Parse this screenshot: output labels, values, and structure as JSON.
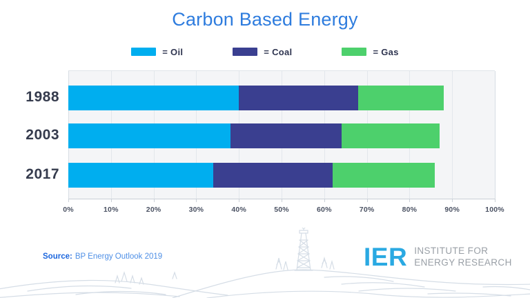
{
  "title": "Carbon Based Energy",
  "legend": [
    {
      "label": "= Oil",
      "color": "#00AEEF"
    },
    {
      "label": "= Coal",
      "color": "#3A3F90"
    },
    {
      "label": "= Gas",
      "color": "#4DD06C"
    }
  ],
  "chart_data": {
    "type": "bar",
    "orientation": "horizontal",
    "stacked": true,
    "title": "Carbon Based Energy",
    "categories": [
      "1988",
      "2003",
      "2017"
    ],
    "series": [
      {
        "name": "Oil",
        "color": "#00AEEF",
        "values": [
          40,
          38,
          34
        ]
      },
      {
        "name": "Coal",
        "color": "#3A3F90",
        "values": [
          28,
          26,
          28
        ]
      },
      {
        "name": "Gas",
        "color": "#4DD06C",
        "values": [
          20,
          23,
          24
        ]
      }
    ],
    "xlabel": "",
    "ylabel": "",
    "units": "%",
    "xlim": [
      0,
      100
    ],
    "x_ticks": [
      "0%",
      "10%",
      "20%",
      "30%",
      "40%",
      "50%",
      "60%",
      "70%",
      "80%",
      "90%",
      "100%"
    ],
    "grid": true,
    "legend_position": "top"
  },
  "source": {
    "label": "Source:",
    "text": "BP Energy Outlook 2019"
  },
  "logo": {
    "acronym": "IER",
    "name_line1": "INSTITUTE FOR",
    "name_line2": "ENERGY RESEARCH"
  },
  "colors": {
    "title": "#2E7CDE",
    "oil": "#00AEEF",
    "coal": "#3A3F90",
    "gas": "#4DD06C",
    "plot_background": "#F4F5F7",
    "gridline": "#E3E7EC",
    "axis_text": "#4B5263",
    "year_text": "#353B4D",
    "source_label": "#1C66DD",
    "source_text": "#4E8FE6",
    "logo_blue": "#2AA9E2",
    "logo_gray": "#999FA6",
    "illustration_line": "#D5DDE6"
  }
}
